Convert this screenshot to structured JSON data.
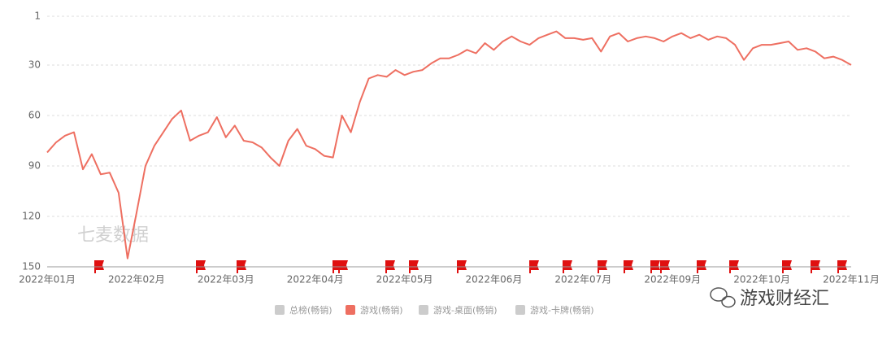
{
  "chart_data": {
    "type": "line",
    "categories": [
      "2022年01月",
      null,
      null,
      null,
      null,
      null,
      null,
      null,
      null,
      null,
      "2022年02月",
      null,
      null,
      null,
      null,
      null,
      null,
      null,
      null,
      null,
      "2022年03月",
      null,
      null,
      null,
      null,
      null,
      null,
      null,
      null,
      null,
      "2022年04月",
      null,
      null,
      null,
      null,
      null,
      null,
      null,
      null,
      null,
      "2022年05月",
      null,
      null,
      null,
      null,
      null,
      null,
      null,
      null,
      null,
      "2022年06月",
      null,
      null,
      null,
      null,
      null,
      null,
      null,
      null,
      null,
      "2022年07月",
      null,
      null,
      null,
      null,
      null,
      null,
      null,
      null,
      null,
      "2022年09月",
      null,
      null,
      null,
      null,
      null,
      null,
      null,
      null,
      null,
      "2022年10月",
      null,
      null,
      null,
      null,
      null,
      null,
      null,
      null,
      null,
      "2022年11月"
    ],
    "series": [
      {
        "name": "游戏(畅销)",
        "color": "#ee6f61",
        "values": [
          82,
          76,
          72,
          70,
          92,
          83,
          95,
          94,
          106,
          145,
          118,
          90,
          78,
          70,
          62,
          57,
          75,
          72,
          70,
          61,
          73,
          66,
          75,
          76,
          79,
          85,
          90,
          75,
          68,
          78,
          80,
          84,
          85,
          60,
          70,
          52,
          38,
          36,
          37,
          33,
          36,
          34,
          33,
          29,
          26,
          26,
          24,
          21,
          23,
          17,
          21,
          16,
          13,
          16,
          18,
          14,
          12,
          10,
          14,
          14,
          15,
          14,
          22,
          13,
          11,
          16,
          14,
          13,
          14,
          16,
          13,
          11,
          14,
          12,
          15,
          13,
          14,
          18,
          27,
          20,
          18,
          18,
          17,
          16,
          21,
          20,
          22,
          26,
          25,
          27,
          30
        ]
      }
    ],
    "hidden_series": [
      {
        "name": "总榜(畅销)",
        "color": "#cccccc"
      },
      {
        "name": "游戏-桌面(畅销)",
        "color": "#cccccc"
      },
      {
        "name": "游戏-卡牌(畅销)",
        "color": "#cccccc"
      }
    ],
    "ylim": [
      150,
      1
    ],
    "yticks": [
      1,
      30,
      60,
      90,
      120,
      150
    ],
    "grid": true,
    "watermark": "七麦数据",
    "source": "游戏财经汇"
  }
}
